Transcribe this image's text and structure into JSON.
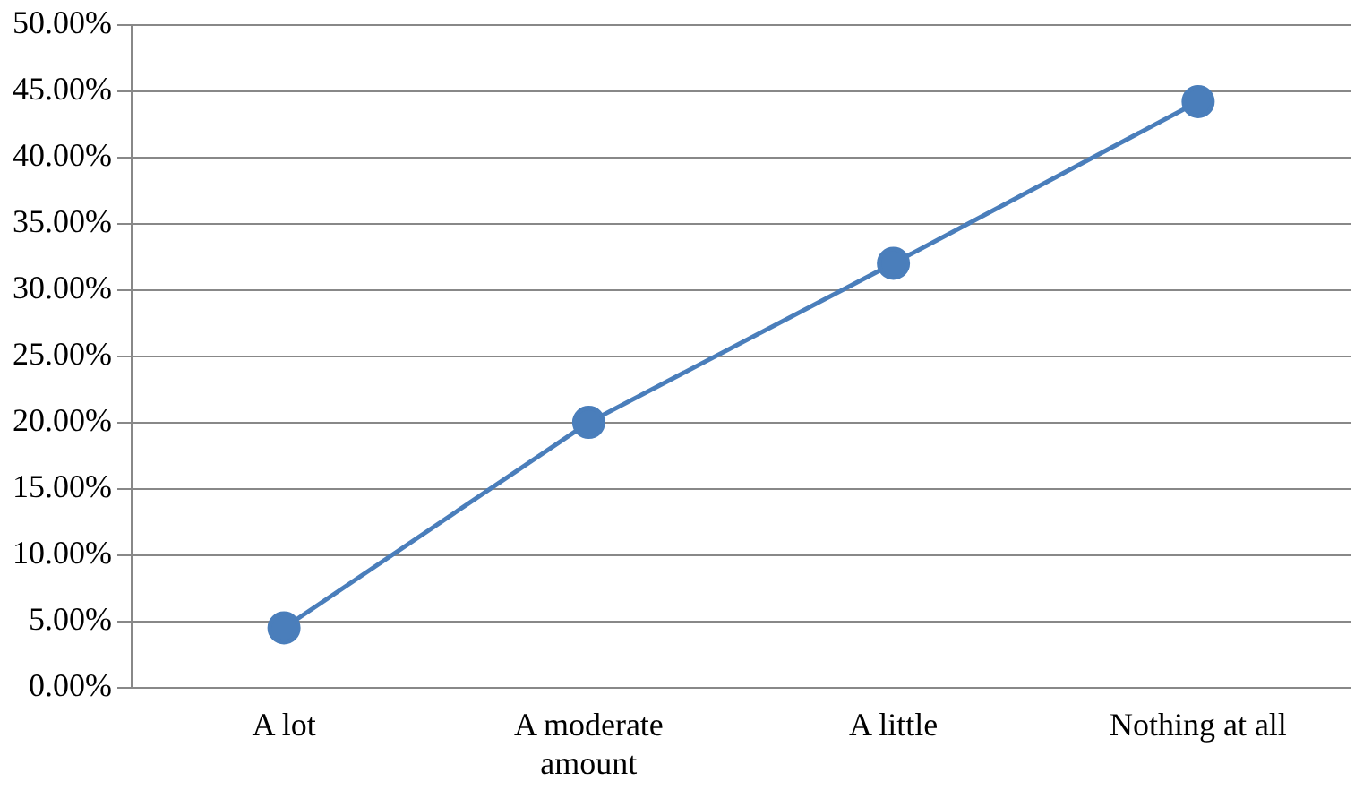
{
  "chart_data": {
    "type": "line",
    "categories": [
      "A lot",
      "A moderate amount",
      "A little",
      "Nothing at all"
    ],
    "series": [
      {
        "color": "#4a7ebb",
        "values": [
          4.5,
          20,
          32,
          44.2
        ]
      }
    ],
    "ylim": [
      0,
      50
    ],
    "yticks": [
      {
        "value": 0,
        "label": "0.00%"
      },
      {
        "value": 5,
        "label": "5.00%"
      },
      {
        "value": 10,
        "label": "10.00%"
      },
      {
        "value": 15,
        "label": "15.00%"
      },
      {
        "value": 20,
        "label": "20.00%"
      },
      {
        "value": 25,
        "label": "25.00%"
      },
      {
        "value": 30,
        "label": "30.00%"
      },
      {
        "value": 35,
        "label": "35.00%"
      },
      {
        "value": 40,
        "label": "40.00%"
      },
      {
        "value": 45,
        "label": "45.00%"
      },
      {
        "value": 50,
        "label": "50.00%"
      }
    ],
    "grid": "y",
    "legend": false,
    "marker": "circle",
    "line_style": "solid"
  }
}
